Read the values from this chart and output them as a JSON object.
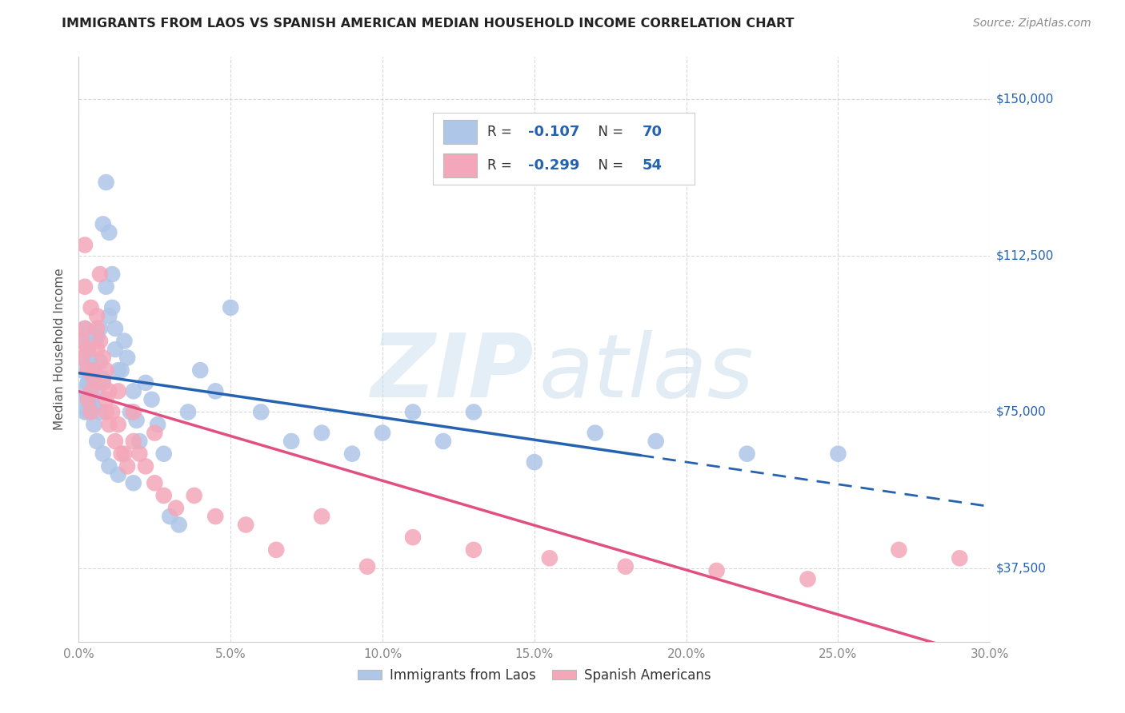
{
  "title": "IMMIGRANTS FROM LAOS VS SPANISH AMERICAN MEDIAN HOUSEHOLD INCOME CORRELATION CHART",
  "source": "Source: ZipAtlas.com",
  "ylabel": "Median Household Income",
  "xlim": [
    0.0,
    0.3
  ],
  "ylim": [
    20000,
    160000
  ],
  "xtick_labels": [
    "0.0%",
    "5.0%",
    "10.0%",
    "15.0%",
    "20.0%",
    "25.0%",
    "30.0%"
  ],
  "xtick_vals": [
    0.0,
    0.05,
    0.1,
    0.15,
    0.2,
    0.25,
    0.3
  ],
  "ytick_vals": [
    37500,
    75000,
    112500,
    150000
  ],
  "ytick_labels": [
    "$37,500",
    "$75,000",
    "$112,500",
    "$150,000"
  ],
  "legend_labels": [
    "Immigrants from Laos",
    "Spanish Americans"
  ],
  "R1": -0.107,
  "N1": 70,
  "R2": -0.299,
  "N2": 54,
  "color_laos": "#aec6e8",
  "color_spanish": "#f4a7b9",
  "line_color_laos": "#2563b0",
  "line_color_spanish": "#e05080",
  "background_color": "#ffffff",
  "grid_color": "#d8d8d8",
  "title_color": "#222222",
  "source_color": "#888888",
  "ylabel_color": "#555555",
  "xtick_color": "#888888",
  "ytick_color": "#2563b0",
  "legend_text_color": "#333333",
  "legend_value_color": "#2563b0",
  "laos_x": [
    0.001,
    0.001,
    0.002,
    0.002,
    0.002,
    0.003,
    0.003,
    0.003,
    0.004,
    0.004,
    0.004,
    0.005,
    0.005,
    0.005,
    0.006,
    0.006,
    0.007,
    0.007,
    0.007,
    0.008,
    0.008,
    0.009,
    0.009,
    0.01,
    0.01,
    0.011,
    0.011,
    0.012,
    0.012,
    0.013,
    0.014,
    0.015,
    0.016,
    0.017,
    0.018,
    0.019,
    0.02,
    0.022,
    0.024,
    0.026,
    0.028,
    0.03,
    0.033,
    0.036,
    0.04,
    0.045,
    0.05,
    0.06,
    0.07,
    0.08,
    0.09,
    0.1,
    0.11,
    0.12,
    0.13,
    0.15,
    0.17,
    0.19,
    0.22,
    0.25,
    0.001,
    0.002,
    0.003,
    0.004,
    0.005,
    0.006,
    0.008,
    0.01,
    0.013,
    0.018
  ],
  "laos_y": [
    85000,
    92000,
    78000,
    88000,
    95000,
    82000,
    90000,
    75000,
    83000,
    78000,
    88000,
    92000,
    76000,
    85000,
    80000,
    93000,
    87000,
    75000,
    95000,
    83000,
    120000,
    130000,
    105000,
    118000,
    98000,
    108000,
    100000,
    95000,
    90000,
    85000,
    85000,
    92000,
    88000,
    75000,
    80000,
    73000,
    68000,
    82000,
    78000,
    72000,
    65000,
    50000,
    48000,
    75000,
    85000,
    80000,
    100000,
    75000,
    68000,
    70000,
    65000,
    70000,
    75000,
    68000,
    75000,
    63000,
    70000,
    68000,
    65000,
    65000,
    80000,
    75000,
    82000,
    78000,
    72000,
    68000,
    65000,
    62000,
    60000,
    58000
  ],
  "spanish_x": [
    0.001,
    0.001,
    0.002,
    0.002,
    0.003,
    0.003,
    0.003,
    0.004,
    0.004,
    0.005,
    0.005,
    0.006,
    0.006,
    0.007,
    0.007,
    0.008,
    0.008,
    0.009,
    0.009,
    0.01,
    0.01,
    0.011,
    0.012,
    0.013,
    0.014,
    0.015,
    0.016,
    0.018,
    0.02,
    0.022,
    0.025,
    0.028,
    0.032,
    0.038,
    0.045,
    0.055,
    0.065,
    0.08,
    0.095,
    0.11,
    0.13,
    0.155,
    0.18,
    0.21,
    0.24,
    0.27,
    0.29,
    0.002,
    0.004,
    0.006,
    0.009,
    0.013,
    0.018,
    0.025
  ],
  "spanish_y": [
    92000,
    88000,
    95000,
    105000,
    78000,
    85000,
    90000,
    80000,
    75000,
    83000,
    85000,
    90000,
    98000,
    92000,
    108000,
    88000,
    82000,
    78000,
    75000,
    72000,
    80000,
    75000,
    68000,
    72000,
    65000,
    65000,
    62000,
    68000,
    65000,
    62000,
    58000,
    55000,
    52000,
    55000,
    50000,
    48000,
    42000,
    50000,
    38000,
    45000,
    42000,
    40000,
    38000,
    37000,
    35000,
    42000,
    40000,
    115000,
    100000,
    95000,
    85000,
    80000,
    75000,
    70000
  ],
  "laos_line_solid_end": 0.185,
  "watermark_zip": "ZIP",
  "watermark_atlas": "atlas"
}
